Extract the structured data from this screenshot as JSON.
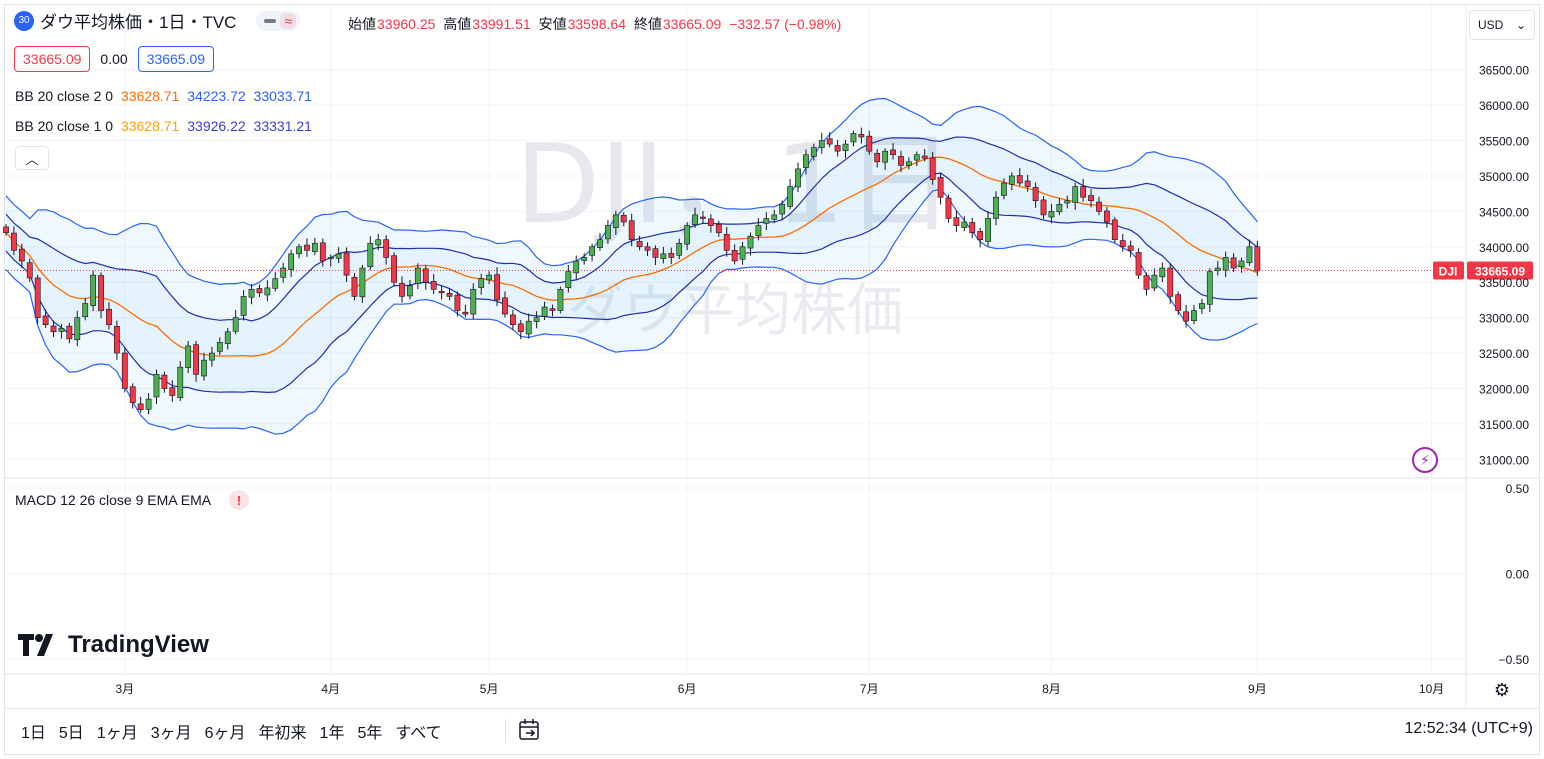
{
  "header": {
    "badge": "30",
    "title": "ダウ平均株価・1日・TVC",
    "ohlc": [
      {
        "label": "始値",
        "value": "33960.25"
      },
      {
        "label": "高値",
        "value": "33991.51"
      },
      {
        "label": "安値",
        "value": "33598.64"
      },
      {
        "label": "終値",
        "value": "33665.09"
      }
    ],
    "change": "−332.57 (−0.98%)",
    "bid": "33665.09",
    "spread": "0.00",
    "ask": "33665.09"
  },
  "indicators": {
    "bb2": {
      "label": "BB 20 close 2 0",
      "basis": "33628.71",
      "upper": "34223.72",
      "lower": "33033.71"
    },
    "bb1": {
      "label": "BB 20 close 1 0",
      "basis": "33628.71",
      "upper": "33926.22",
      "lower": "33331.21"
    },
    "macd": {
      "label": "MACD 12 26 close 9 EMA EMA",
      "warning": "!"
    }
  },
  "watermark": {
    "line1": "DJI，1日",
    "line2": "ダウ平均株価"
  },
  "currency": "USD",
  "brand": "TradingView",
  "ranges": [
    "1日",
    "5日",
    "1ヶ月",
    "3ヶ月",
    "6ヶ月",
    "年初来",
    "1年",
    "5年",
    "すべて"
  ],
  "clock": "12:52:34 (UTC+9)",
  "price_label": {
    "symbol": "DJI",
    "value": "33665.09"
  },
  "colors": {
    "up": "#4caf50",
    "down": "#f23645",
    "band": "#2962ff",
    "basis": "#ff6d00",
    "fill": "#2196f3"
  },
  "chart_data": {
    "type": "candlestick",
    "y_ticks": [
      "36500.00",
      "36000.00",
      "35500.00",
      "35000.00",
      "34500.00",
      "34000.00",
      "33500.00",
      "33000.00",
      "32500.00",
      "32000.00",
      "31500.00",
      "31000.00"
    ],
    "ylim": [
      30750,
      36750
    ],
    "macd_ticks": [
      "0.50",
      "0.00",
      "−0.50"
    ],
    "month_labels": [
      {
        "label": "3月",
        "index": 15
      },
      {
        "label": "4月",
        "index": 41
      },
      {
        "label": "5月",
        "index": 61
      },
      {
        "label": "6月",
        "index": 86
      },
      {
        "label": "7月",
        "index": 109
      },
      {
        "label": "8月",
        "index": 132
      },
      {
        "label": "9月",
        "index": 158
      },
      {
        "label": "10月",
        "index": 180
      }
    ],
    "close": [
      34200,
      33950,
      33800,
      33560,
      33000,
      32900,
      32800,
      32850,
      32700,
      33000,
      33200,
      33600,
      33100,
      32900,
      32500,
      32000,
      31800,
      31700,
      31850,
      32200,
      32000,
      31900,
      32300,
      32600,
      32200,
      32400,
      32500,
      32650,
      32800,
      33000,
      33300,
      33400,
      33350,
      33420,
      33550,
      33700,
      33900,
      34000,
      33950,
      34050,
      33800,
      33850,
      33900,
      33600,
      33300,
      33700,
      34050,
      34100,
      33850,
      33500,
      33300,
      33450,
      33700,
      33500,
      33400,
      33350,
      33300,
      33100,
      33050,
      33400,
      33550,
      33600,
      33250,
      33050,
      32900,
      32800,
      32950,
      33000,
      33150,
      33100,
      33400,
      33650,
      33800,
      33850,
      34000,
      34100,
      34300,
      34450,
      34350,
      34100,
      34000,
      33950,
      33850,
      33900,
      33850,
      34050,
      34300,
      34450,
      34400,
      34300,
      34200,
      33950,
      33800,
      34000,
      34150,
      34300,
      34400,
      34450,
      34600,
      34850,
      35100,
      35300,
      35400,
      35500,
      35450,
      35350,
      35450,
      35600,
      35550,
      35350,
      35200,
      35350,
      35300,
      35150,
      35200,
      35300,
      35250,
      34950,
      34700,
      34400,
      34300,
      34350,
      34200,
      34100,
      34400,
      34700,
      34900,
      35000,
      34900,
      34850,
      34650,
      34450,
      34500,
      34600,
      34650,
      34850,
      34700,
      34650,
      34500,
      34350,
      34100,
      34000,
      33950,
      33600,
      33400,
      33600,
      33700,
      33300,
      33100,
      32950,
      33100,
      33200,
      33650,
      33700,
      33850,
      33700,
      33800,
      34000,
      33660
    ]
  }
}
